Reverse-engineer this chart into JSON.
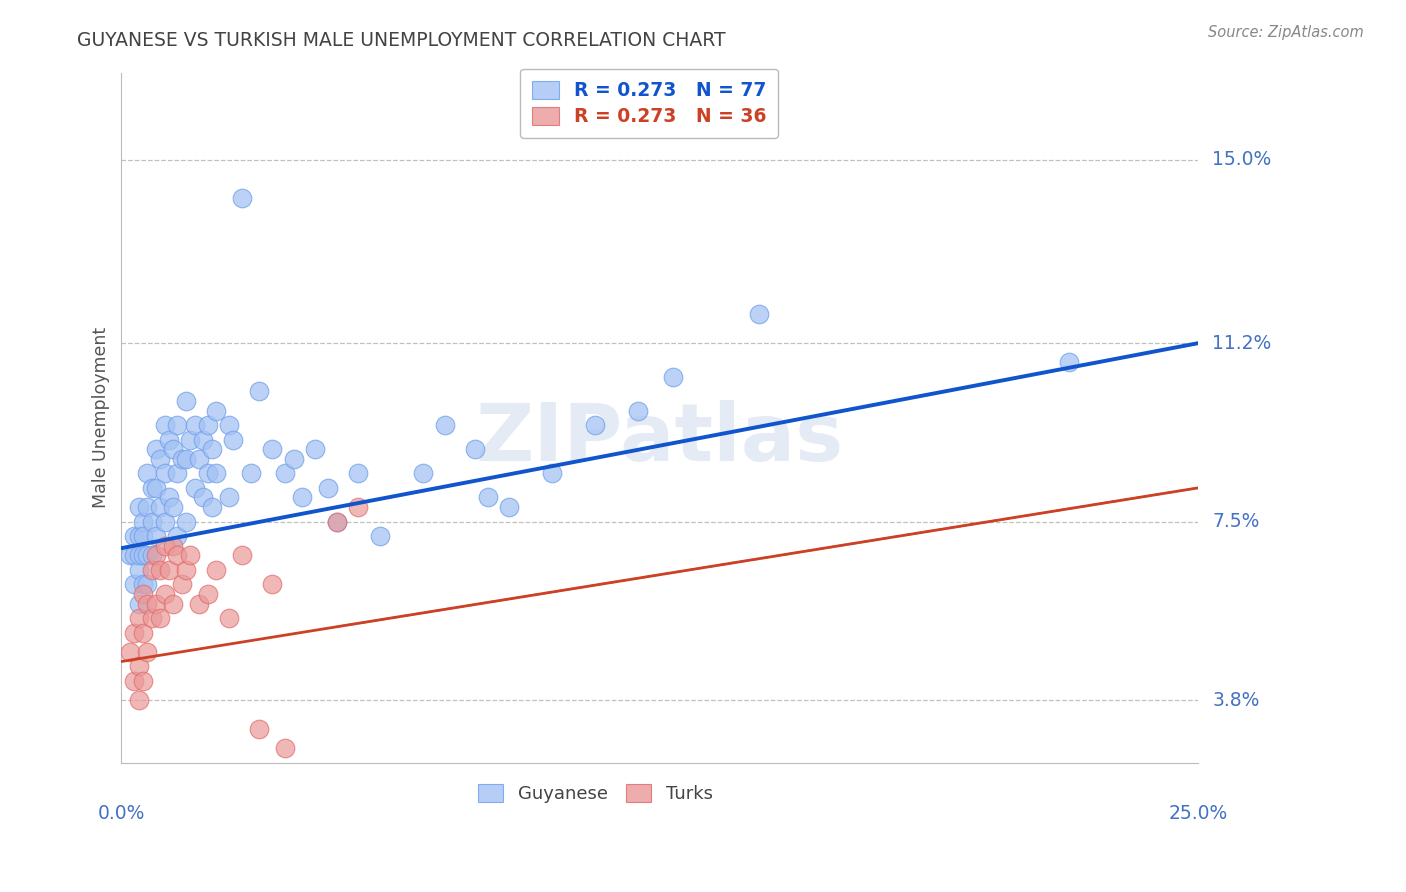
{
  "title": "GUYANESE VS TURKISH MALE UNEMPLOYMENT CORRELATION CHART",
  "source": "Source: ZipAtlas.com",
  "ylabel": "Male Unemployment",
  "xlim": [
    0.0,
    0.25
  ],
  "ylim": [
    0.025,
    0.168
  ],
  "ytick_values": [
    0.038,
    0.075,
    0.112,
    0.15
  ],
  "ytick_labels": [
    "3.8%",
    "7.5%",
    "11.2%",
    "15.0%"
  ],
  "blue_color": "#a4c2f4",
  "blue_edge_color": "#6d9eeb",
  "pink_color": "#ea9999",
  "pink_edge_color": "#e06666",
  "blue_line_color": "#1155cc",
  "pink_line_color": "#cc4125",
  "grid_color": "#c0c0c0",
  "title_color": "#434343",
  "axis_label_color": "#4472c4",
  "source_color": "#888888",
  "ylabel_color": "#555555",
  "background_color": "#ffffff",
  "watermark": "ZIPatlas",
  "blue_R": "0.273",
  "blue_N": "77",
  "pink_R": "0.273",
  "pink_N": "36",
  "blue_line_y0": 0.0695,
  "blue_line_y1": 0.112,
  "pink_line_y0": 0.046,
  "pink_line_y1": 0.082,
  "blue_scatter_x": [
    0.002,
    0.003,
    0.003,
    0.003,
    0.004,
    0.004,
    0.004,
    0.004,
    0.004,
    0.005,
    0.005,
    0.005,
    0.005,
    0.006,
    0.006,
    0.006,
    0.006,
    0.007,
    0.007,
    0.007,
    0.008,
    0.008,
    0.008,
    0.009,
    0.009,
    0.01,
    0.01,
    0.01,
    0.011,
    0.011,
    0.012,
    0.012,
    0.013,
    0.013,
    0.013,
    0.014,
    0.015,
    0.015,
    0.015,
    0.016,
    0.017,
    0.017,
    0.018,
    0.019,
    0.019,
    0.02,
    0.02,
    0.021,
    0.021,
    0.022,
    0.022,
    0.025,
    0.025,
    0.026,
    0.028,
    0.03,
    0.032,
    0.035,
    0.038,
    0.04,
    0.042,
    0.045,
    0.048,
    0.05,
    0.055,
    0.06,
    0.07,
    0.075,
    0.082,
    0.085,
    0.09,
    0.1,
    0.11,
    0.12,
    0.128,
    0.148,
    0.22
  ],
  "blue_scatter_y": [
    0.068,
    0.062,
    0.072,
    0.068,
    0.065,
    0.058,
    0.072,
    0.078,
    0.068,
    0.075,
    0.068,
    0.062,
    0.072,
    0.085,
    0.078,
    0.068,
    0.062,
    0.082,
    0.075,
    0.068,
    0.09,
    0.082,
    0.072,
    0.088,
    0.078,
    0.095,
    0.085,
    0.075,
    0.092,
    0.08,
    0.09,
    0.078,
    0.095,
    0.085,
    0.072,
    0.088,
    0.1,
    0.088,
    0.075,
    0.092,
    0.095,
    0.082,
    0.088,
    0.092,
    0.08,
    0.095,
    0.085,
    0.09,
    0.078,
    0.098,
    0.085,
    0.095,
    0.08,
    0.092,
    0.142,
    0.085,
    0.102,
    0.09,
    0.085,
    0.088,
    0.08,
    0.09,
    0.082,
    0.075,
    0.085,
    0.072,
    0.085,
    0.095,
    0.09,
    0.08,
    0.078,
    0.085,
    0.095,
    0.098,
    0.105,
    0.118,
    0.108
  ],
  "pink_scatter_x": [
    0.002,
    0.003,
    0.003,
    0.004,
    0.004,
    0.004,
    0.005,
    0.005,
    0.005,
    0.006,
    0.006,
    0.007,
    0.007,
    0.008,
    0.008,
    0.009,
    0.009,
    0.01,
    0.01,
    0.011,
    0.012,
    0.012,
    0.013,
    0.014,
    0.015,
    0.016,
    0.018,
    0.02,
    0.022,
    0.025,
    0.028,
    0.032,
    0.035,
    0.038,
    0.05,
    0.055
  ],
  "pink_scatter_y": [
    0.048,
    0.042,
    0.052,
    0.055,
    0.045,
    0.038,
    0.06,
    0.052,
    0.042,
    0.058,
    0.048,
    0.065,
    0.055,
    0.068,
    0.058,
    0.065,
    0.055,
    0.07,
    0.06,
    0.065,
    0.07,
    0.058,
    0.068,
    0.062,
    0.065,
    0.068,
    0.058,
    0.06,
    0.065,
    0.055,
    0.068,
    0.032,
    0.062,
    0.028,
    0.075,
    0.078
  ]
}
